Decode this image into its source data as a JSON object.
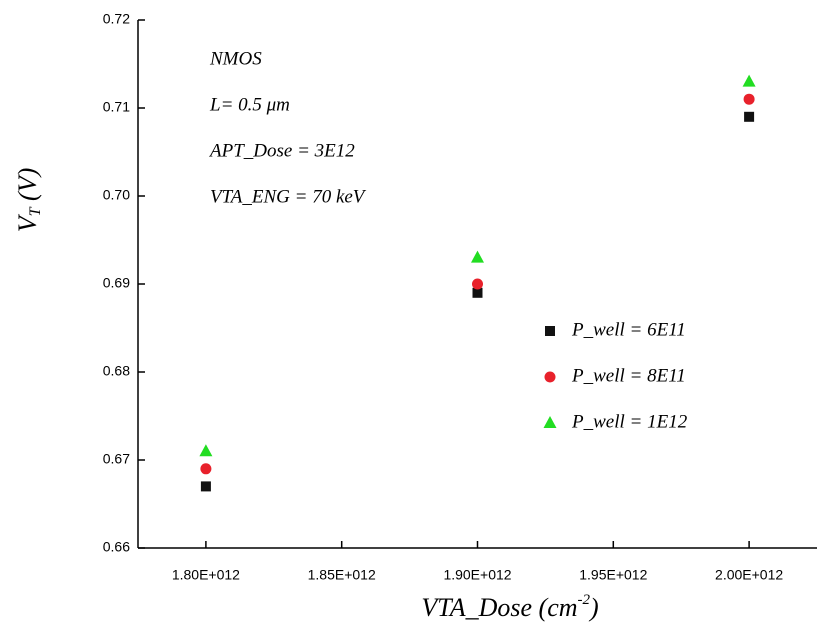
{
  "chart_data": {
    "type": "scatter",
    "xlabel": [
      "VTA_Dose (cm",
      "-2",
      ")"
    ],
    "ylabel": [
      "V",
      "T",
      " (V)"
    ],
    "annotations": [
      "NMOS",
      "L= 0.5 μm",
      "APT_Dose = 3E12",
      "VTA_ENG = 70 keV"
    ],
    "x": [
      1800000000000.0,
      1900000000000.0,
      2000000000000.0
    ],
    "series": [
      {
        "name": "P_well = 6E11",
        "color": "#111111",
        "marker": "square",
        "values": [
          0.667,
          0.689,
          0.709
        ]
      },
      {
        "name": "P_well = 8E11",
        "color": "#e8212b",
        "marker": "circle",
        "values": [
          0.669,
          0.69,
          0.711
        ]
      },
      {
        "name": "P_well = 1E12",
        "color": "#22dd22",
        "marker": "triangle",
        "values": [
          0.671,
          0.693,
          0.713
        ]
      }
    ],
    "xlim": [
      1775000000000.0,
      2025000000000.0
    ],
    "xticks": [
      {
        "value": 1800000000000.0,
        "label": "1.80E+012"
      },
      {
        "value": 1850000000000.0,
        "label": "1.85E+012"
      },
      {
        "value": 1900000000000.0,
        "label": "1.90E+012"
      },
      {
        "value": 1950000000000.0,
        "label": "1.95E+012"
      },
      {
        "value": 2000000000000.0,
        "label": "2.00E+012"
      }
    ],
    "ylim": [
      0.66,
      0.72
    ],
    "yticks": [
      0.66,
      0.67,
      0.68,
      0.69,
      {
        "value": 0.7,
        "label": "0.70"
      },
      0.71,
      0.72
    ],
    "legend": "right"
  }
}
